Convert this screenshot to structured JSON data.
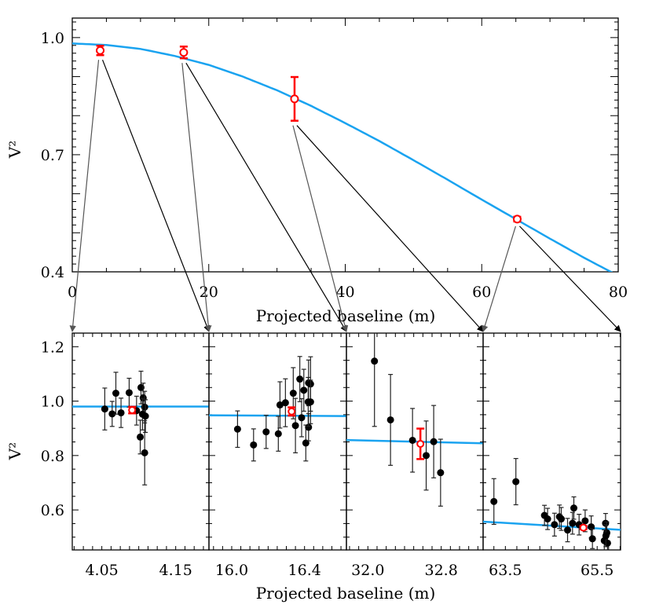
{
  "colors": {
    "model": "#1aa3f0",
    "mean": "#ff0000",
    "data": "#000000",
    "arrow_left": "#555555",
    "arrow_right": "#000000"
  },
  "chart_data": [
    {
      "type": "scatter",
      "xlabel": "Projected baseline (m)",
      "ylabel": "V²",
      "xlim": [
        0,
        80
      ],
      "ylim": [
        0.4,
        1.05
      ],
      "xticks": [
        "0",
        "20",
        "40",
        "60",
        "80"
      ],
      "yticks": [
        "0.4",
        "0.7",
        "1.0"
      ],
      "grid": false,
      "model": {
        "x": [
          0,
          5,
          10,
          15,
          20,
          25,
          30,
          35,
          40,
          45,
          50,
          55,
          60,
          65,
          70,
          75,
          80
        ],
        "y": [
          0.985,
          0.981,
          0.971,
          0.953,
          0.93,
          0.9,
          0.865,
          0.825,
          0.781,
          0.735,
          0.686,
          0.636,
          0.585,
          0.535,
          0.485,
          0.436,
          0.39
        ]
      },
      "points": [
        [
          4.09,
          0.967,
          0.012
        ],
        [
          16.33,
          0.962,
          0.015
        ],
        [
          32.57,
          0.843,
          0.056
        ],
        [
          65.2,
          0.535,
          0.006
        ]
      ]
    },
    {
      "type": "scatter",
      "xlabel": "Projected baseline (m)",
      "ylabel": "V²",
      "panels": [
        {
          "xlim": [
            4.01,
            4.195
          ],
          "xticks": [
            "4.05",
            "4.15"
          ],
          "ylim": [
            0.453,
            1.25
          ],
          "yticks": [
            "0.6",
            "0.8",
            "1.0",
            "1.2"
          ],
          "model": [
            0.98,
            0.98
          ],
          "mean": [
            4.091,
            0.967,
            0.012
          ],
          "points": [
            [
              4.054,
              0.971,
              0.077
            ],
            [
              4.064,
              0.953,
              0.046
            ],
            [
              4.069,
              1.029,
              0.077
            ],
            [
              4.076,
              0.957,
              0.054
            ],
            [
              4.087,
              1.031,
              0.053
            ],
            [
              4.097,
              0.965,
              0.053
            ],
            [
              4.102,
              0.868,
              0.062
            ],
            [
              4.103,
              1.05,
              0.06
            ],
            [
              4.106,
              1.012,
              0.054
            ],
            [
              4.108,
              0.978,
              0.058
            ],
            [
              4.105,
              0.952,
              0.058
            ],
            [
              4.109,
              0.945,
              0.06
            ],
            [
              4.108,
              0.81,
              0.118
            ]
          ]
        },
        {
          "xlim": [
            15.875,
            16.63
          ],
          "xticks": [
            "16.0",
            "16.4"
          ],
          "ylim": [
            0.453,
            1.25
          ],
          "model": [
            0.948,
            0.945
          ],
          "mean": [
            16.329,
            0.962,
            0.015
          ],
          "points": [
            [
              16.032,
              0.897,
              0.067
            ],
            [
              16.12,
              0.839,
              0.059
            ],
            [
              16.189,
              0.887,
              0.061
            ],
            [
              16.256,
              0.88,
              0.064
            ],
            [
              16.265,
              0.986,
              0.085
            ],
            [
              16.295,
              0.994,
              0.088
            ],
            [
              16.338,
              1.029,
              0.094
            ],
            [
              16.35,
              0.91,
              0.1
            ],
            [
              16.374,
              1.081,
              0.083
            ],
            [
              16.384,
              0.939,
              0.07
            ],
            [
              16.396,
              1.04,
              0.077
            ],
            [
              16.407,
              0.846,
              0.066
            ],
            [
              16.422,
              1.067,
              0.084
            ],
            [
              16.422,
              0.904,
              0.05
            ],
            [
              16.42,
              0.997,
              0.09
            ],
            [
              16.433,
              1.063,
              0.1
            ],
            [
              16.433,
              0.997,
              0.08
            ]
          ]
        },
        {
          "xlim": [
            31.766,
            33.257
          ],
          "xticks": [
            "32.0",
            "32.8"
          ],
          "ylim": [
            0.453,
            1.25
          ],
          "model": [
            0.857,
            0.845
          ],
          "mean": [
            32.573,
            0.843,
            0.056
          ],
          "points": [
            [
              32.072,
              1.147,
              0.24
            ],
            [
              32.247,
              0.931,
              0.167
            ],
            [
              32.487,
              0.856,
              0.117
            ],
            [
              32.636,
              0.8,
              0.127
            ],
            [
              32.718,
              0.851,
              0.133
            ],
            [
              32.793,
              0.737,
              0.123
            ]
          ]
        },
        {
          "xlim": [
            63.015,
            66.01
          ],
          "xticks": [
            "63.5",
            "65.5"
          ],
          "ylim": [
            0.453,
            1.25
          ],
          "model": [
            0.557,
            0.527
          ],
          "mean": [
            65.2,
            0.535,
            0.006
          ],
          "points": [
            [
              63.25,
              0.631,
              0.084
            ],
            [
              63.729,
              0.704,
              0.085
            ],
            [
              64.352,
              0.58,
              0.037
            ],
            [
              64.42,
              0.567,
              0.039
            ],
            [
              64.57,
              0.546,
              0.042
            ],
            [
              64.678,
              0.575,
              0.043
            ],
            [
              64.718,
              0.567,
              0.042
            ],
            [
              64.855,
              0.526,
              0.043
            ],
            [
              64.992,
              0.607,
              0.041
            ],
            [
              64.963,
              0.551,
              0.04
            ],
            [
              65.106,
              0.546,
              0.038
            ],
            [
              65.238,
              0.56,
              0.04
            ],
            [
              65.37,
              0.538,
              0.04
            ],
            [
              65.397,
              0.494,
              0.036
            ],
            [
              65.683,
              0.551,
              0.036
            ],
            [
              65.655,
              0.487,
              0.04
            ],
            [
              65.71,
              0.516,
              0.04
            ],
            [
              65.726,
              0.478,
              0.03
            ],
            [
              65.69,
              0.505,
              0.04
            ]
          ]
        }
      ]
    }
  ]
}
